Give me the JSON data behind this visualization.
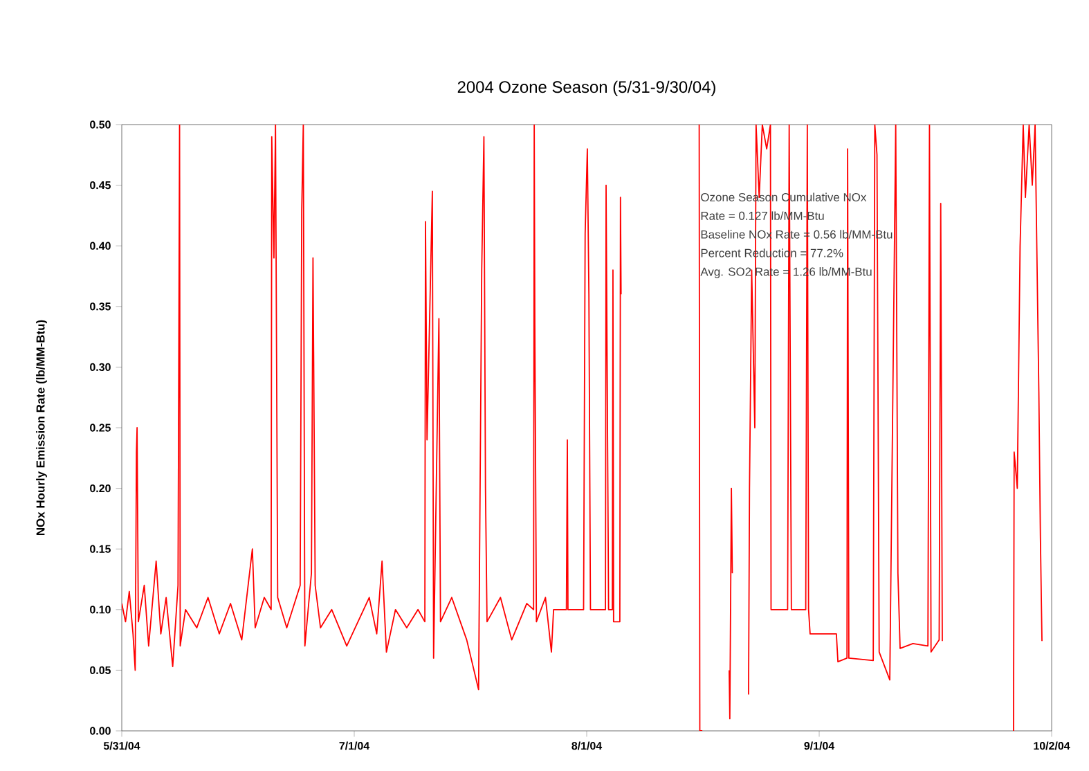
{
  "chart_data": {
    "type": "line",
    "title": "2004 Ozone Season (5/31-9/30/04)",
    "ylabel": "NOx Hourly Emission Rate (lb/MM-Btu)",
    "xlim": [
      "2004-05-31",
      "2004-10-02"
    ],
    "xticks": [
      {
        "value": "2004-05-31",
        "label": "5/31/04"
      },
      {
        "value": "2004-07-01",
        "label": "7/1/04"
      },
      {
        "value": "2004-08-01",
        "label": "8/1/04"
      },
      {
        "value": "2004-09-01",
        "label": "9/1/04"
      },
      {
        "value": "2004-10-02",
        "label": "10/2/04"
      }
    ],
    "ylim": [
      0,
      0.5
    ],
    "yticks": [
      {
        "value": 0,
        "label": "0.00"
      },
      {
        "value": 0.05,
        "label": "0.05"
      },
      {
        "value": 0.1,
        "label": "0.10"
      },
      {
        "value": 0.15,
        "label": "0.15"
      },
      {
        "value": 0.2,
        "label": "0.20"
      },
      {
        "value": 0.25,
        "label": "0.25"
      },
      {
        "value": 0.3,
        "label": "0.30"
      },
      {
        "value": 0.35,
        "label": "0.35"
      },
      {
        "value": 0.4,
        "label": "0.40"
      },
      {
        "value": 0.45,
        "label": "0.45"
      },
      {
        "value": 0.5,
        "label": "0.50"
      }
    ],
    "grid": false,
    "marker": "none",
    "line_style": "solid",
    "annotations": [
      "Ozone Season Cumulative NOx",
      "Rate = 0.127 lb/MM-Btu",
      "Baseline NOx Rate = 0.56 lb/MM-Btu",
      "Percent Reduction = 77.2%",
      "Avg. SO2 Rate = 1.26 lb/MM-Btu"
    ],
    "series": [
      {
        "color": "#ff0000",
        "x": [
          "2004-05-31T00:00",
          "2004-05-31T12:00",
          "2004-06-01T00:00",
          "2004-06-01T12:00",
          "2004-06-01T19:00",
          "2004-06-01T23:00",
          "2004-06-02T01:00",
          "2004-06-02T05:00",
          "2004-06-03T00:00",
          "2004-06-03T14:00",
          "2004-06-04T14:00",
          "2004-06-05T05:00",
          "2004-06-05T22:00",
          "2004-06-06T19:00",
          "2004-06-07T12:00",
          "2004-06-07T17:00",
          "2004-06-07T19:00",
          "2004-06-08T12:00",
          "2004-06-10T00:00",
          "2004-06-11T12:00",
          "2004-06-13T00:00",
          "2004-06-14T12:00",
          "2004-06-16T00:00",
          "2004-06-17T10:00",
          "2004-06-17T19:00",
          "2004-06-19T00:00",
          "2004-06-19T22:00",
          "2004-06-20T00:00",
          "2004-06-20T07:00",
          "2004-06-20T12:00",
          "2004-06-20T19:00",
          "2004-06-22T00:00",
          "2004-06-23T19:00",
          "2004-06-24T00:00",
          "2004-06-24T05:00",
          "2004-06-24T10:00",
          "2004-06-25T07:00",
          "2004-06-25T12:00",
          "2004-06-25T19:00",
          "2004-06-26T12:00",
          "2004-06-28T00:00",
          "2004-06-30T00:00",
          "2004-07-01T12:00",
          "2004-07-03T00:00",
          "2004-07-04T00:00",
          "2004-07-04T17:00",
          "2004-07-05T07:00",
          "2004-07-06T12:00",
          "2004-07-08T00:00",
          "2004-07-09T12:00",
          "2004-07-10T10:00",
          "2004-07-10T12:00",
          "2004-07-10T17:00",
          "2004-07-11T10:00",
          "2004-07-11T14:00",
          "2004-07-12T07:00",
          "2004-07-12T12:00",
          "2004-07-14T00:00",
          "2004-07-16T00:00",
          "2004-07-17T14:00",
          "2004-07-18T00:00",
          "2004-07-18T07:00",
          "2004-07-18T12:00",
          "2004-07-18T17:00",
          "2004-07-20T12:00",
          "2004-07-22T00:00",
          "2004-07-24T00:00",
          "2004-07-24T22:00",
          "2004-07-25T00:00",
          "2004-07-25T02:00",
          "2004-07-25T07:00",
          "2004-07-26T12:00",
          "2004-07-27T07:00",
          "2004-07-27T14:00",
          "2004-07-29T07:00",
          "2004-07-29T10:00",
          "2004-07-29T12:00",
          "2004-07-31T14:00",
          "2004-07-31T19:00",
          "2004-08-01T02:00",
          "2004-08-01T07:00",
          "2004-08-01T12:00",
          "2004-08-03T12:00",
          "2004-08-03T14:00",
          "2004-08-03T22:00",
          "2004-08-04T10:00",
          "2004-08-04T12:00",
          "2004-08-04T14:00",
          "2004-08-05T10:00",
          "2004-08-05T12:00",
          "2004-08-05T14:00",
          "2004-08-09T00:00",
          "2004-08-16T00:00",
          "2004-08-16T02:00",
          "2004-08-16T10:00",
          "2004-08-18T00:00",
          "2004-08-20T00:00",
          "2004-08-20T02:00",
          "2004-08-20T07:00",
          "2004-08-20T10:00",
          "2004-08-21T12:00",
          "2004-08-22T14:00",
          "2004-08-22T17:00",
          "2004-08-23T00:00",
          "2004-08-23T10:00",
          "2004-08-23T14:00",
          "2004-08-24T00:00",
          "2004-08-24T10:00",
          "2004-08-25T00:00",
          "2004-08-25T12:00",
          "2004-08-25T14:00",
          "2004-08-27T19:00",
          "2004-08-28T00:00",
          "2004-08-28T07:00",
          "2004-08-30T05:00",
          "2004-08-30T10:00",
          "2004-08-30T14:00",
          "2004-08-30T19:00",
          "2004-09-03T07:00",
          "2004-09-03T12:00",
          "2004-09-04T17:00",
          "2004-09-04T19:00",
          "2004-09-04T23:00",
          "2004-09-08T05:00",
          "2004-09-08T10:00",
          "2004-09-08T17:00",
          "2004-09-09T00:00",
          "2004-09-10T10:00",
          "2004-09-11T05:00",
          "2004-09-11T12:00",
          "2004-09-11T19:00",
          "2004-09-13T12:00",
          "2004-09-15T12:00",
          "2004-09-15T17:00",
          "2004-09-15T22:00",
          "2004-09-17T00:00",
          "2004-09-17T05:00",
          "2004-09-17T10:00",
          "2004-09-21T00:00",
          "2004-09-26T22:00",
          "2004-09-27T00:00",
          "2004-09-27T10:00",
          "2004-09-27T19:00",
          "2004-09-28T05:00",
          "2004-09-28T12:00",
          "2004-09-29T00:00",
          "2004-09-29T10:00",
          "2004-09-29T19:00",
          "2004-09-30T07:00",
          "2004-09-30T12:00",
          "2004-09-30T17:00"
        ],
        "values": [
          0.105,
          0.09,
          0.115,
          0.08,
          0.05,
          0.23,
          0.25,
          0.09,
          0.12,
          0.07,
          0.14,
          0.08,
          0.11,
          0.053,
          0.12,
          0.5,
          0.07,
          0.1,
          0.085,
          0.11,
          0.08,
          0.105,
          0.075,
          0.15,
          0.085,
          0.11,
          0.1,
          0.49,
          0.39,
          0.5,
          0.11,
          0.085,
          0.12,
          0.43,
          0.5,
          0.07,
          0.13,
          0.39,
          0.12,
          0.085,
          0.1,
          0.07,
          0.09,
          0.11,
          0.08,
          0.14,
          0.065,
          0.1,
          0.085,
          0.1,
          0.09,
          0.42,
          0.24,
          0.445,
          0.06,
          0.34,
          0.09,
          0.11,
          0.075,
          0.034,
          0.38,
          0.49,
          0.2,
          0.09,
          0.11,
          0.075,
          0.105,
          0.1,
          0.5,
          0.335,
          0.09,
          0.11,
          0.065,
          0.1,
          0.1,
          0.24,
          0.1,
          0.1,
          0.41,
          0.48,
          0.36,
          0.1,
          0.1,
          0.45,
          0.1,
          0.1,
          0.38,
          0.09,
          0.09,
          0.44,
          0.36,
          null,
          0.5,
          0.0,
          0.0,
          null,
          0.05,
          0.01,
          0.2,
          0.13,
          null,
          0.03,
          0.2,
          0.38,
          0.25,
          0.5,
          0.44,
          0.5,
          0.48,
          0.5,
          0.1,
          0.1,
          0.5,
          0.1,
          0.1,
          0.5,
          0.1,
          0.08,
          0.08,
          0.057,
          0.06,
          0.48,
          0.06,
          0.058,
          0.5,
          0.475,
          0.065,
          0.042,
          0.5,
          0.13,
          0.068,
          0.072,
          0.07,
          0.5,
          0.065,
          0.075,
          0.435,
          0.074,
          null,
          0.0,
          0.23,
          0.2,
          0.4,
          0.5,
          0.44,
          0.5,
          0.45,
          0.5,
          0.28,
          0.16,
          0.074
        ]
      }
    ]
  }
}
